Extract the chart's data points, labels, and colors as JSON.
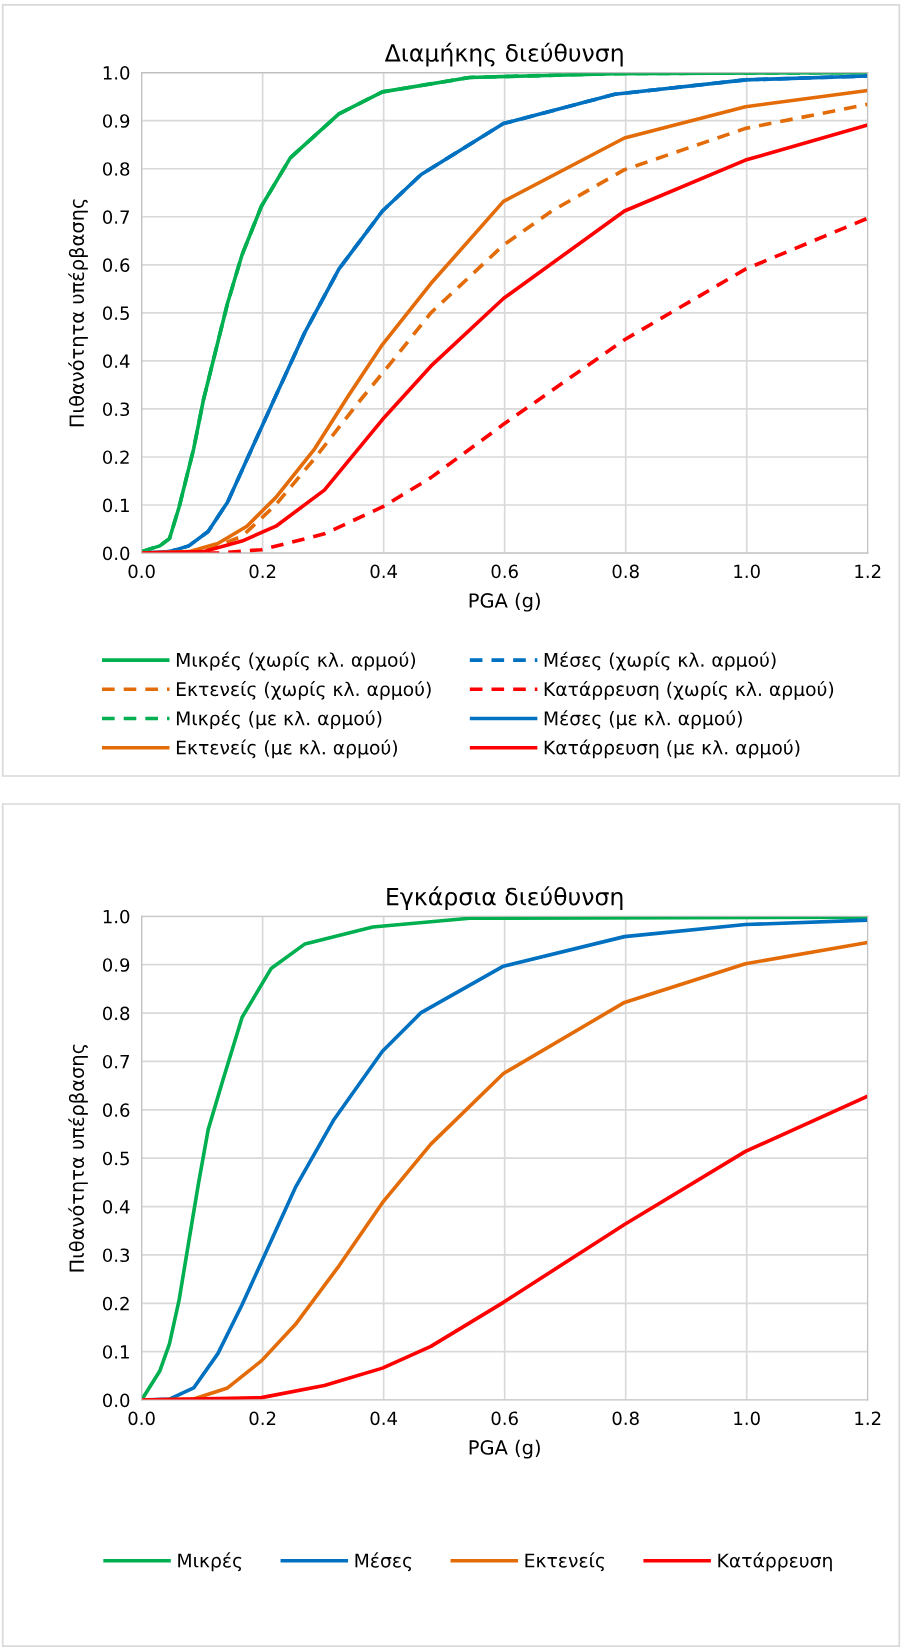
{
  "chart_data": [
    {
      "type": "line",
      "title": "Διαμήκης διεύθυνση",
      "xlabel": "PGA (g)",
      "ylabel": "Πιθανότητα υπέρβασης",
      "xlim": [
        0,
        1.2
      ],
      "xticks": [
        {
          "value": 0,
          "label": "0.0"
        },
        {
          "value": 0.2,
          "label": "0.2"
        },
        {
          "value": 0.4,
          "label": "0.4"
        },
        {
          "value": 0.6,
          "label": "0.6"
        },
        {
          "value": 0.8,
          "label": "0.8"
        },
        {
          "value": 1.0,
          "label": "1.0"
        },
        {
          "value": 1.2,
          "label": "1.2"
        }
      ],
      "ylim": [
        0,
        1.0
      ],
      "yticks": [
        {
          "value": 0,
          "label": "0.0"
        },
        {
          "value": 0.1,
          "label": "0.1"
        },
        {
          "value": 0.2,
          "label": "0.2"
        },
        {
          "value": 0.3,
          "label": "0.3"
        },
        {
          "value": 0.4,
          "label": "0.4"
        },
        {
          "value": 0.5,
          "label": "0.5"
        },
        {
          "value": 0.6,
          "label": "0.6"
        },
        {
          "value": 0.7,
          "label": "0.7"
        },
        {
          "value": 0.8,
          "label": "0.8"
        },
        {
          "value": 0.9,
          "label": "0.9"
        },
        {
          "value": 1.0,
          "label": "1.0"
        }
      ],
      "grid": true,
      "legend": "bottom",
      "marker": "none",
      "series": [
        {
          "name": "Μικρές (χωρίς κλ. αρμού)",
          "color": "#00b050",
          "line_style": "solid",
          "x": [
            0,
            0.03,
            0.046,
            0.062,
            0.086,
            0.102,
            0.122,
            0.142,
            0.166,
            0.198,
            0.246,
            0.326,
            0.398,
            0.542,
            0.782,
            1.2
          ],
          "values": [
            0.003,
            0.015,
            0.03,
            0.096,
            0.217,
            0.318,
            0.419,
            0.52,
            0.621,
            0.722,
            0.823,
            0.914,
            0.96,
            0.99,
            0.998,
            1.0
          ]
        },
        {
          "name": "Μέσες (χωρίς κλ. αρμού)",
          "color": "#0070c0",
          "line_style": "dashed",
          "x": [
            0,
            0.046,
            0.078,
            0.11,
            0.142,
            0.182,
            0.222,
            0.27,
            0.326,
            0.398,
            0.462,
            0.598,
            0.782,
            0.998,
            1.2
          ],
          "values": [
            0,
            0.003,
            0.015,
            0.045,
            0.106,
            0.217,
            0.328,
            0.46,
            0.591,
            0.712,
            0.788,
            0.894,
            0.955,
            0.985,
            0.993
          ]
        },
        {
          "name": "Εκτενείς (χωρίς κλ. αρμού)",
          "color": "#e36c09",
          "line_style": "dashed",
          "x": [
            0,
            0.102,
            0.166,
            0.222,
            0.286,
            0.358,
            0.414,
            0.478,
            0.598,
            0.678,
            0.798,
            0.998,
            1.2
          ],
          "values": [
            0,
            0.003,
            0.035,
            0.101,
            0.197,
            0.313,
            0.399,
            0.5,
            0.641,
            0.712,
            0.798,
            0.884,
            0.934
          ]
        },
        {
          "name": "Κατάρρευση (χωρίς κλ. αρμού)",
          "color": "#ff0000",
          "line_style": "dashed",
          "x": [
            0,
            0.126,
            0.198,
            0.302,
            0.398,
            0.478,
            0.598,
            0.798,
            0.998,
            1.2
          ],
          "values": [
            0,
            0,
            0.007,
            0.04,
            0.096,
            0.157,
            0.268,
            0.444,
            0.591,
            0.697
          ]
        },
        {
          "name": "Μικρές (με κλ. αρμού)",
          "color": "#00b050",
          "line_style": "dashed",
          "x": [
            0,
            0.03,
            0.046,
            0.062,
            0.086,
            0.102,
            0.122,
            0.142,
            0.166,
            0.198,
            0.246,
            0.326,
            0.398,
            0.542,
            0.782,
            1.2
          ],
          "values": [
            0.003,
            0.015,
            0.03,
            0.096,
            0.217,
            0.318,
            0.419,
            0.52,
            0.621,
            0.722,
            0.823,
            0.914,
            0.96,
            0.99,
            0.998,
            1.0
          ]
        },
        {
          "name": "Μέσες (με κλ. αρμού)",
          "color": "#0070c0",
          "line_style": "solid",
          "x": [
            0,
            0.046,
            0.078,
            0.11,
            0.142,
            0.182,
            0.222,
            0.27,
            0.326,
            0.398,
            0.462,
            0.598,
            0.782,
            0.998,
            1.2
          ],
          "values": [
            0,
            0.003,
            0.015,
            0.045,
            0.106,
            0.217,
            0.328,
            0.46,
            0.591,
            0.712,
            0.788,
            0.894,
            0.955,
            0.985,
            0.993
          ]
        },
        {
          "name": "Εκτενείς (με κλ. αρμού)",
          "color": "#e36c09",
          "line_style": "solid",
          "x": [
            0,
            0.078,
            0.126,
            0.174,
            0.222,
            0.286,
            0.342,
            0.398,
            0.478,
            0.598,
            0.798,
            0.998,
            1.2
          ],
          "values": [
            0,
            0.003,
            0.02,
            0.056,
            0.116,
            0.217,
            0.328,
            0.434,
            0.561,
            0.732,
            0.864,
            0.929,
            0.963
          ]
        },
        {
          "name": "Κατάρρευση (με κλ. αρμού)",
          "color": "#ff0000",
          "line_style": "solid",
          "x": [
            0,
            0.102,
            0.166,
            0.222,
            0.302,
            0.398,
            0.478,
            0.598,
            0.798,
            0.998,
            1.2
          ],
          "values": [
            0,
            0.003,
            0.025,
            0.056,
            0.131,
            0.278,
            0.389,
            0.53,
            0.712,
            0.818,
            0.891
          ]
        }
      ]
    },
    {
      "type": "line",
      "title": "Εγκάρσια διεύθυνση",
      "xlabel": "PGA (g)",
      "ylabel": "Πιθανότητα υπέρβασης",
      "xlim": [
        0,
        1.2
      ],
      "xticks": [
        {
          "value": 0,
          "label": "0.0"
        },
        {
          "value": 0.2,
          "label": "0.2"
        },
        {
          "value": 0.4,
          "label": "0.4"
        },
        {
          "value": 0.6,
          "label": "0.6"
        },
        {
          "value": 0.8,
          "label": "0.8"
        },
        {
          "value": 1.0,
          "label": "1.0"
        },
        {
          "value": 1.2,
          "label": "1.2"
        }
      ],
      "ylim": [
        0,
        1.0
      ],
      "yticks": [
        {
          "value": 0,
          "label": "0.0"
        },
        {
          "value": 0.1,
          "label": "0.1"
        },
        {
          "value": 0.2,
          "label": "0.2"
        },
        {
          "value": 0.3,
          "label": "0.3"
        },
        {
          "value": 0.4,
          "label": "0.4"
        },
        {
          "value": 0.5,
          "label": "0.5"
        },
        {
          "value": 0.6,
          "label": "0.6"
        },
        {
          "value": 0.7,
          "label": "0.7"
        },
        {
          "value": 0.8,
          "label": "0.8"
        },
        {
          "value": 0.9,
          "label": "0.9"
        },
        {
          "value": 1.0,
          "label": "1.0"
        }
      ],
      "grid": true,
      "legend": "bottom",
      "marker": "none",
      "line_style": "solid",
      "series": [
        {
          "name": "Μικρές",
          "color": "#00b050",
          "x": [
            0,
            0.03,
            0.046,
            0.062,
            0.078,
            0.094,
            0.11,
            0.134,
            0.166,
            0.214,
            0.27,
            0.382,
            0.542,
            1.2
          ],
          "values": [
            0,
            0.06,
            0.116,
            0.207,
            0.328,
            0.448,
            0.559,
            0.66,
            0.791,
            0.892,
            0.943,
            0.978,
            0.996,
            0.998
          ]
        },
        {
          "name": "Μέσες",
          "color": "#0070c0",
          "x": [
            0,
            0.046,
            0.086,
            0.126,
            0.166,
            0.206,
            0.254,
            0.318,
            0.398,
            0.462,
            0.598,
            0.798,
            0.998,
            1.2
          ],
          "values": [
            0,
            0.002,
            0.025,
            0.096,
            0.197,
            0.307,
            0.439,
            0.58,
            0.721,
            0.801,
            0.897,
            0.958,
            0.983,
            0.992
          ]
        },
        {
          "name": "Εκτενείς",
          "color": "#e36c09",
          "x": [
            0,
            0.086,
            0.142,
            0.198,
            0.254,
            0.326,
            0.398,
            0.478,
            0.598,
            0.798,
            0.998,
            1.2
          ],
          "values": [
            0,
            0.002,
            0.025,
            0.081,
            0.156,
            0.277,
            0.408,
            0.529,
            0.675,
            0.822,
            0.902,
            0.946
          ]
        },
        {
          "name": "Κατάρρευση",
          "color": "#ff0000",
          "x": [
            0,
            0.198,
            0.302,
            0.398,
            0.478,
            0.598,
            0.798,
            0.998,
            1.2
          ],
          "values": [
            0,
            0.005,
            0.03,
            0.066,
            0.111,
            0.202,
            0.363,
            0.514,
            0.628
          ]
        }
      ]
    }
  ]
}
